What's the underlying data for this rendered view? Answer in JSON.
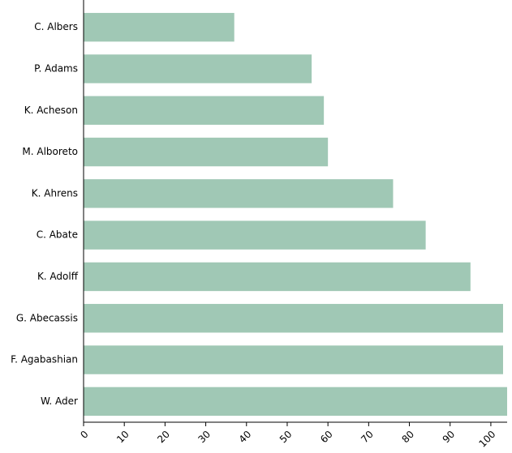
{
  "chart_data": {
    "type": "bar",
    "orientation": "horizontal",
    "categories": [
      "C. Albers",
      "P. Adams",
      "K. Acheson",
      "M. Alboreto",
      "K. Ahrens",
      "C. Abate",
      "K. Adolff",
      "G. Abecassis",
      "F. Agabashian",
      "W. Ader"
    ],
    "values": [
      37,
      56,
      59,
      60,
      76,
      84,
      95,
      103,
      103,
      104
    ],
    "xlim": [
      0,
      104
    ],
    "x_ticks": [
      0,
      10,
      20,
      30,
      40,
      50,
      60,
      70,
      80,
      90,
      100
    ],
    "title": "",
    "xlabel": "",
    "ylabel": "",
    "grid": false,
    "legend": "none",
    "bar_color": "#a0c8b5"
  }
}
